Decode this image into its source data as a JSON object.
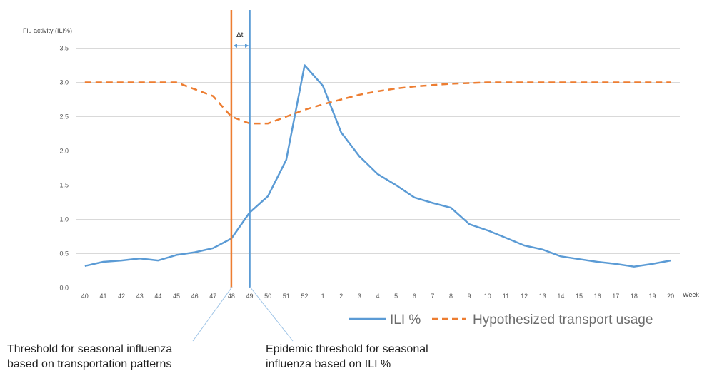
{
  "chart_data": {
    "type": "line",
    "ylabel": "Flu activity (ILI%)",
    "xlabel": "Week",
    "categories": [
      "40",
      "41",
      "42",
      "43",
      "44",
      "45",
      "46",
      "47",
      "48",
      "49",
      "50",
      "51",
      "52",
      "1",
      "2",
      "3",
      "4",
      "5",
      "6",
      "7",
      "8",
      "9",
      "10",
      "11",
      "12",
      "13",
      "14",
      "15",
      "16",
      "17",
      "18",
      "19",
      "20"
    ],
    "y_ticks": [
      "0.0",
      "0.5",
      "1.0",
      "1.5",
      "2.0",
      "2.5",
      "3.0",
      "3.5"
    ],
    "ylim": [
      0,
      3.5
    ],
    "grid": true,
    "legend_position": "bottom-right",
    "series": [
      {
        "name": "ILI %",
        "style": "solid",
        "color": "#5b9bd5",
        "values": [
          0.32,
          0.38,
          0.4,
          0.43,
          0.4,
          0.48,
          0.52,
          0.58,
          0.72,
          1.1,
          1.34,
          1.87,
          3.25,
          2.95,
          2.27,
          1.92,
          1.66,
          1.5,
          1.32,
          1.24,
          1.17,
          0.93,
          0.84,
          0.73,
          0.62,
          0.56,
          0.46,
          0.42,
          0.38,
          0.35,
          0.31,
          0.35,
          0.4
        ]
      },
      {
        "name": "Hypothesized transport usage",
        "style": "dashed",
        "color": "#ed7d31",
        "values": [
          3.0,
          3.0,
          3.0,
          3.0,
          3.0,
          3.0,
          2.9,
          2.8,
          2.5,
          2.4,
          2.4,
          2.5,
          2.6,
          2.68,
          2.75,
          2.82,
          2.87,
          2.91,
          2.94,
          2.96,
          2.98,
          2.99,
          3.0,
          3.0,
          3.0,
          3.0,
          3.0,
          3.0,
          3.0,
          3.0,
          3.0,
          3.0,
          3.0
        ]
      }
    ],
    "vertical_markers": [
      {
        "week": "48",
        "color": "#ed7d31",
        "label": "Threshold for seasonal influenza based on transportation patterns"
      },
      {
        "week": "49",
        "color": "#5b9bd5",
        "label": "Epidemic threshold for seasonal influenza based on ILI %"
      }
    ],
    "delta_label": "Δt"
  },
  "annotations": {
    "left_line1": "Threshold for seasonal influenza",
    "left_line2": "based on transportation patterns",
    "right_line1": "Epidemic threshold for seasonal",
    "right_line2": "influenza based on ILI %"
  },
  "colors": {
    "grid": "#d9d9d9",
    "axis": "#bfbfbf",
    "ili": "#5b9bd5",
    "transport": "#ed7d31",
    "pointer": "#9dc3e6"
  }
}
